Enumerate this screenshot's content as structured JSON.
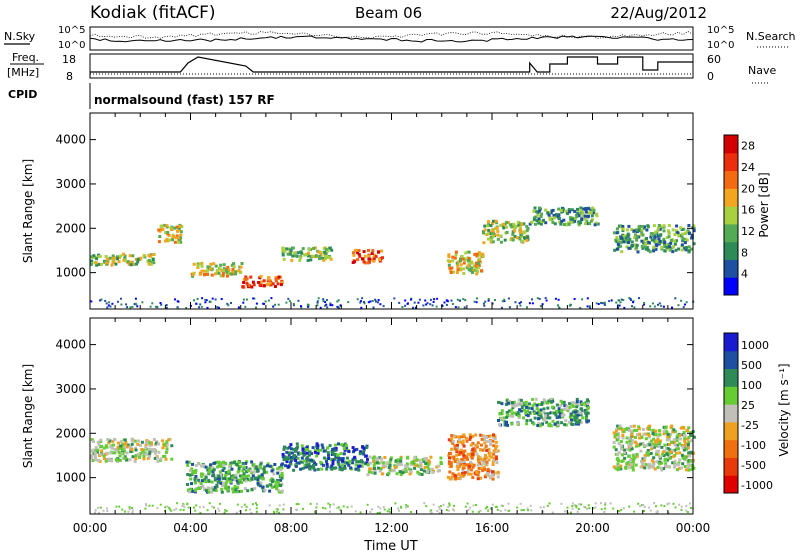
{
  "header": {
    "site": "Kodiak (fitACF)",
    "beam": "Beam 06",
    "date": "22/Aug/2012"
  },
  "panels": {
    "nsky_label": "N.Sky",
    "nsearch_label": "N.Search",
    "noise_ticks_left": [
      "10^5",
      "10^0"
    ],
    "noise_ticks_right": [
      "10^5",
      "10^0"
    ],
    "freq_label_line1": "Freq.",
    "freq_label_line2": "[MHz]",
    "freq_ticks": [
      "18",
      "8"
    ],
    "nave_label": "Nave",
    "nave_ticks": [
      "60",
      "0"
    ],
    "cpid_label": "CPID",
    "cpid_text": "normalsound (fast) 157 RF"
  },
  "colors": {
    "power_scale": [
      "#0000ff",
      "#1e4fa0",
      "#2e8b57",
      "#55aa55",
      "#a8d040",
      "#f2a51f",
      "#f46a12",
      "#ec2d0e",
      "#d20000"
    ],
    "velocity_scale": [
      "#1a1ad0",
      "#1e4fa0",
      "#2e8b57",
      "#66cc33",
      "#c0c0b8",
      "#f0a020",
      "#f07010",
      "#e83a0a",
      "#e00000"
    ]
  },
  "chart_data": [
    {
      "type": "heatmap",
      "name": "power",
      "xlabel": "",
      "ylabel": "Slant Range [km]",
      "xlim": [
        0,
        24
      ],
      "ylim": [
        180,
        4600
      ],
      "yticks": [
        "1000",
        "2000",
        "3000",
        "4000"
      ],
      "colorbar": {
        "label": "Power [dB]",
        "ticks": [
          "4",
          "8",
          "12",
          "16",
          "20",
          "24",
          "28"
        ],
        "range": [
          0,
          30
        ]
      },
      "echo_regions": [
        {
          "t_start": 0.0,
          "t_end": 2.6,
          "range_lo": 1200,
          "range_hi": 1450,
          "power": 14
        },
        {
          "t_start": 2.6,
          "t_end": 3.6,
          "range_lo": 1700,
          "range_hi": 2100,
          "power": 18
        },
        {
          "t_start": 4.0,
          "t_end": 6.0,
          "range_lo": 950,
          "range_hi": 1250,
          "power": 20
        },
        {
          "t_start": 6.0,
          "t_end": 7.6,
          "range_lo": 700,
          "range_hi": 950,
          "power": 28
        },
        {
          "t_start": 7.6,
          "t_end": 9.6,
          "range_lo": 1300,
          "range_hi": 1600,
          "power": 16
        },
        {
          "t_start": 10.4,
          "t_end": 11.6,
          "range_lo": 1250,
          "range_hi": 1550,
          "power": 27
        },
        {
          "t_start": 14.2,
          "t_end": 15.6,
          "range_lo": 1000,
          "range_hi": 1500,
          "power": 20
        },
        {
          "t_start": 15.6,
          "t_end": 17.4,
          "range_lo": 1700,
          "range_hi": 2200,
          "power": 14
        },
        {
          "t_start": 17.4,
          "t_end": 20.2,
          "range_lo": 2100,
          "range_hi": 2500,
          "power": 12
        },
        {
          "t_start": 20.8,
          "t_end": 24.0,
          "range_lo": 1500,
          "range_hi": 2100,
          "power": 12
        }
      ]
    },
    {
      "type": "heatmap",
      "name": "velocity",
      "xlabel": "Time UT",
      "ylabel": "Slant Range [km]",
      "xlim": [
        0,
        24
      ],
      "ylim": [
        180,
        4600
      ],
      "xticks": [
        "00:00",
        "04:00",
        "08:00",
        "12:00",
        "16:00",
        "20:00",
        "00:00"
      ],
      "yticks": [
        "1000",
        "2000",
        "3000",
        "4000"
      ],
      "colorbar": {
        "label": "Velocity [m s⁻¹]",
        "ticks": [
          "1000",
          "500",
          "100",
          "25",
          "-25",
          "-100",
          "-500",
          "-1000"
        ]
      },
      "echo_regions": [
        {
          "t_start": 0.0,
          "t_end": 3.2,
          "range_lo": 1400,
          "range_hi": 1900,
          "velocity": 0
        },
        {
          "t_start": 3.8,
          "t_end": 7.6,
          "range_lo": 700,
          "range_hi": 1400,
          "velocity": 120
        },
        {
          "t_start": 7.6,
          "t_end": 11.0,
          "range_lo": 1200,
          "range_hi": 1800,
          "velocity": 350
        },
        {
          "t_start": 11.0,
          "t_end": 14.0,
          "range_lo": 1100,
          "range_hi": 1500,
          "velocity": 0
        },
        {
          "t_start": 14.2,
          "t_end": 16.2,
          "range_lo": 1000,
          "range_hi": 2000,
          "velocity": -150
        },
        {
          "t_start": 16.2,
          "t_end": 19.8,
          "range_lo": 2200,
          "range_hi": 2800,
          "velocity": 200
        },
        {
          "t_start": 20.8,
          "t_end": 24.0,
          "range_lo": 1200,
          "range_hi": 2200,
          "velocity": 0
        }
      ]
    }
  ]
}
